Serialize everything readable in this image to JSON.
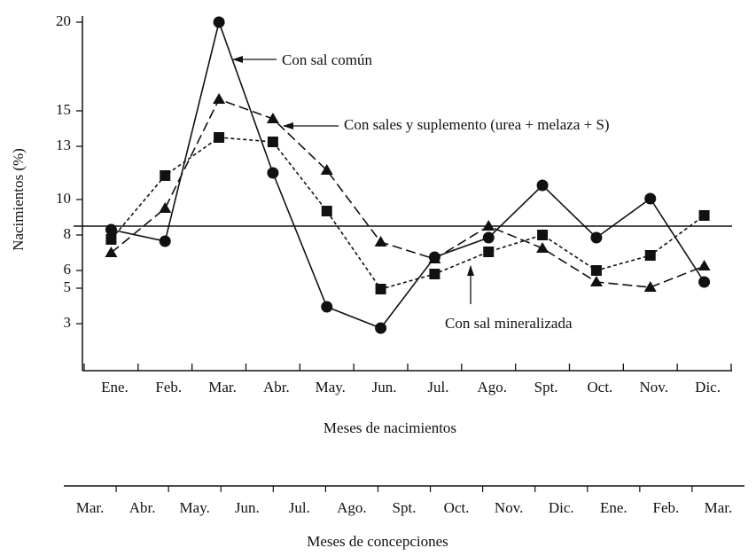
{
  "chart_data": {
    "type": "line",
    "ylabel": "Nacimientos (%)",
    "xlabel": "Meses de nacimientos",
    "categories": [
      "Ene.",
      "Feb.",
      "Mar.",
      "Abr.",
      "May.",
      "Jun.",
      "Jul.",
      "Ago.",
      "Spt.",
      "Oct.",
      "Nov.",
      "Dic."
    ],
    "ylim": [
      0.35,
      20.35
    ],
    "yticks": [
      3,
      5,
      6,
      8,
      10,
      13,
      15,
      20
    ],
    "reference_line": 8.5,
    "series": [
      {
        "name": "Con sal común",
        "color": "#111111",
        "marker": "circle",
        "dash": "solid",
        "values": [
          8.3,
          7.65,
          20,
          11.5,
          3.95,
          2.75,
          6.75,
          7.85,
          10.8,
          7.85,
          10.05,
          5.35
        ]
      },
      {
        "name": "Con sales y suplemento (urea + melaza + S)",
        "color": "#111111",
        "marker": "triangle",
        "dash": "long",
        "values": [
          7,
          9.5,
          15.65,
          14.55,
          11.65,
          7.6,
          6.65,
          8.5,
          7.25,
          5.35,
          5.05,
          6.25
        ]
      },
      {
        "name": "Con sal mineralizada",
        "color": "#111111",
        "marker": "square",
        "dash": "short",
        "values": [
          7.75,
          11.35,
          13.5,
          13.25,
          9.35,
          4.95,
          5.8,
          7.05,
          8,
          6,
          6.85,
          9.1
        ]
      }
    ],
    "secondary_axis": {
      "label": "Meses de concepciones",
      "categories": [
        "Mar.",
        "Abr.",
        "May.",
        "Jun.",
        "Jul.",
        "Ago.",
        "Spt.",
        "Oct.",
        "Nov.",
        "Dic.",
        "Ene.",
        "Feb.",
        "Mar."
      ]
    }
  }
}
